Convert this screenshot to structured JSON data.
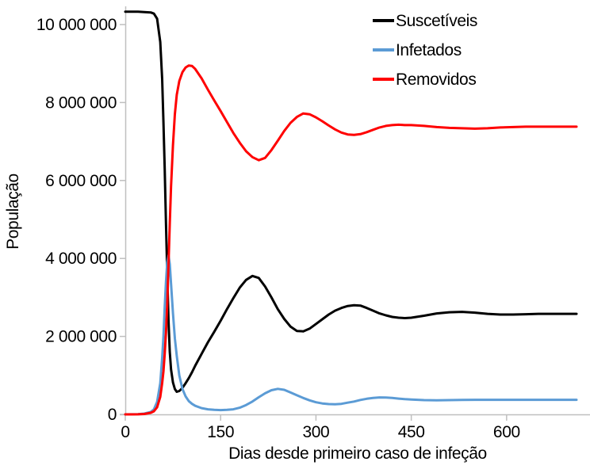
{
  "legend": {
    "items": [
      {
        "label": "Suscetíveis",
        "color": "#000000"
      },
      {
        "label": "Infetados",
        "color": "#5B9BD5"
      },
      {
        "label": "Removidos",
        "color": "#FF0000"
      }
    ]
  },
  "chart_data": {
    "type": "line",
    "title": "",
    "xlabel": "Dias desde primeiro caso de infeção",
    "ylabel": "População",
    "grid": false,
    "legend_position": "top-right",
    "xlim": [
      0,
      710
    ],
    "ylim": [
      0,
      10500000
    ],
    "x_ticks": [
      0,
      150,
      300,
      450,
      600
    ],
    "y_ticks": [
      {
        "value": 0,
        "label": "0"
      },
      {
        "value": 2000000,
        "label": "2 000 000"
      },
      {
        "value": 4000000,
        "label": "4 000 000"
      },
      {
        "value": 6000000,
        "label": "6 000 000"
      },
      {
        "value": 8000000,
        "label": "8 000 000"
      },
      {
        "value": 10000000,
        "label": "10 000 000"
      }
    ],
    "axis_color": "#BFBFBF",
    "x": [
      0,
      10,
      20,
      30,
      40,
      45,
      50,
      55,
      58,
      60,
      62,
      64,
      66,
      68,
      70,
      72,
      75,
      78,
      81,
      85,
      90,
      95,
      100,
      105,
      110,
      120,
      130,
      140,
      150,
      160,
      170,
      180,
      190,
      200,
      210,
      220,
      230,
      240,
      250,
      260,
      270,
      280,
      290,
      300,
      310,
      320,
      330,
      340,
      350,
      360,
      370,
      380,
      390,
      400,
      410,
      420,
      430,
      440,
      450,
      470,
      490,
      510,
      530,
      550,
      570,
      590,
      610,
      630,
      650,
      670,
      690,
      710
    ],
    "series": [
      {
        "name": "Suscetíveis",
        "color": "#000000",
        "values": [
          10330000,
          10330000,
          10330000,
          10320000,
          10310000,
          10280000,
          10150000,
          9550000,
          8600000,
          7500000,
          6300000,
          4900000,
          3600000,
          2400000,
          1600000,
          1150000,
          820000,
          650000,
          580000,
          600000,
          680000,
          800000,
          930000,
          1080000,
          1250000,
          1550000,
          1850000,
          2120000,
          2400000,
          2700000,
          2980000,
          3250000,
          3450000,
          3550000,
          3500000,
          3280000,
          3000000,
          2700000,
          2450000,
          2250000,
          2140000,
          2130000,
          2200000,
          2320000,
          2440000,
          2560000,
          2660000,
          2730000,
          2780000,
          2800000,
          2790000,
          2730000,
          2660000,
          2590000,
          2540000,
          2500000,
          2480000,
          2470000,
          2480000,
          2530000,
          2590000,
          2620000,
          2630000,
          2610000,
          2580000,
          2560000,
          2560000,
          2570000,
          2580000,
          2580000,
          2580000,
          2580000
        ]
      },
      {
        "name": "Infetados",
        "color": "#5B9BD5",
        "values": [
          1000,
          3000,
          7000,
          20000,
          60000,
          130000,
          320000,
          800000,
          1450000,
          2000000,
          2750000,
          3400000,
          3900000,
          4080000,
          3850000,
          3350000,
          2600000,
          1950000,
          1500000,
          1000000,
          650000,
          460000,
          340000,
          270000,
          220000,
          160000,
          130000,
          115000,
          110000,
          115000,
          130000,
          170000,
          240000,
          330000,
          440000,
          540000,
          620000,
          655000,
          630000,
          560000,
          490000,
          420000,
          360000,
          310000,
          280000,
          265000,
          260000,
          270000,
          300000,
          330000,
          370000,
          400000,
          420000,
          435000,
          430000,
          420000,
          405000,
          390000,
          380000,
          365000,
          360000,
          365000,
          370000,
          375000,
          375000,
          375000,
          375000,
          375000,
          375000,
          375000,
          375000,
          375000
        ]
      },
      {
        "name": "Removidos",
        "color": "#FF0000",
        "values": [
          0,
          1000,
          3000,
          10000,
          40000,
          80000,
          180000,
          450000,
          800000,
          1100000,
          1550000,
          2100000,
          2850000,
          3850000,
          4900000,
          5850000,
          6900000,
          7700000,
          8200000,
          8550000,
          8780000,
          8900000,
          8950000,
          8940000,
          8860000,
          8620000,
          8330000,
          8050000,
          7780000,
          7500000,
          7220000,
          6970000,
          6750000,
          6600000,
          6520000,
          6580000,
          6780000,
          7020000,
          7270000,
          7480000,
          7630000,
          7720000,
          7700000,
          7620000,
          7520000,
          7410000,
          7310000,
          7230000,
          7180000,
          7170000,
          7190000,
          7240000,
          7300000,
          7360000,
          7400000,
          7420000,
          7430000,
          7420000,
          7420000,
          7400000,
          7370000,
          7350000,
          7340000,
          7330000,
          7340000,
          7360000,
          7370000,
          7380000,
          7380000,
          7380000,
          7380000,
          7380000
        ]
      }
    ]
  }
}
